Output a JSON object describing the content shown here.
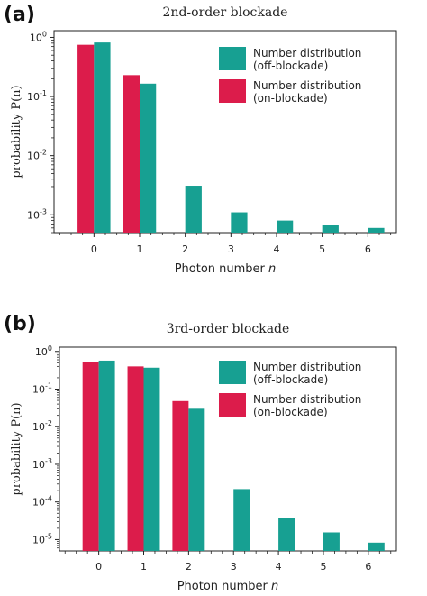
{
  "chart_data": [
    {
      "type": "bar",
      "panel_label": "(a)",
      "title": "2nd-order blockade",
      "xlabel_prefix": "Photon number ",
      "xlabel_var": "n",
      "ylabel": "probability P(n)",
      "y_scale": "log",
      "ylim": [
        0.0005,
        1.3
      ],
      "y_ticks": [
        {
          "value": 1,
          "base": "10",
          "exp": "0"
        },
        {
          "value": 0.1,
          "base": "10",
          "exp": "-1"
        },
        {
          "value": 0.01,
          "base": "10",
          "exp": "-2"
        },
        {
          "value": 0.001,
          "base": "10",
          "exp": "-3"
        }
      ],
      "categories": [
        "0",
        "1",
        "2",
        "3",
        "4",
        "5",
        "6"
      ],
      "series": [
        {
          "name": "Number distribution (on-blockade)",
          "legend_line1": "Number distribution",
          "legend_line2": "(on-blockade)",
          "color": "#dc1c4b",
          "values": [
            0.75,
            0.23,
            null,
            null,
            null,
            null,
            null
          ]
        },
        {
          "name": "Number distribution (off-blockade)",
          "legend_line1": "Number distribution",
          "legend_line2": "(off-blockade)",
          "color": "#17a092",
          "values": [
            0.82,
            0.165,
            0.0031,
            0.0011,
            0.0008,
            0.00067,
            0.0006
          ]
        }
      ],
      "legend_order": [
        1,
        0
      ],
      "legend_position": "top-right",
      "grid": false
    },
    {
      "type": "bar",
      "panel_label": "(b)",
      "title": "3rd-order blockade",
      "xlabel_prefix": "Photon number ",
      "xlabel_var": "n",
      "ylabel": "probability P(n)",
      "y_scale": "log",
      "ylim": [
        5e-06,
        1.3
      ],
      "y_ticks": [
        {
          "value": 1,
          "base": "10",
          "exp": "0"
        },
        {
          "value": 0.1,
          "base": "10",
          "exp": "-1"
        },
        {
          "value": 0.01,
          "base": "10",
          "exp": "-2"
        },
        {
          "value": 0.001,
          "base": "10",
          "exp": "-3"
        },
        {
          "value": 0.0001,
          "base": "10",
          "exp": "-4"
        },
        {
          "value": 1e-05,
          "base": "10",
          "exp": "-5"
        }
      ],
      "categories": [
        "0",
        "1",
        "2",
        "3",
        "4",
        "5",
        "6"
      ],
      "series": [
        {
          "name": "Number distribution (on-blockade)",
          "legend_line1": "Number distribution",
          "legend_line2": "(on-blockade)",
          "color": "#dc1c4b",
          "values": [
            0.52,
            0.4,
            0.048,
            null,
            null,
            null,
            null
          ]
        },
        {
          "name": "Number distribution (off-blockade)",
          "legend_line1": "Number distribution",
          "legend_line2": "(off-blockade)",
          "color": "#17a092",
          "values": [
            0.57,
            0.37,
            0.03,
            0.00022,
            3.7e-05,
            1.55e-05,
            8.3e-06
          ]
        }
      ],
      "legend_order": [
        1,
        0
      ],
      "legend_position": "top-right",
      "grid": false
    }
  ]
}
